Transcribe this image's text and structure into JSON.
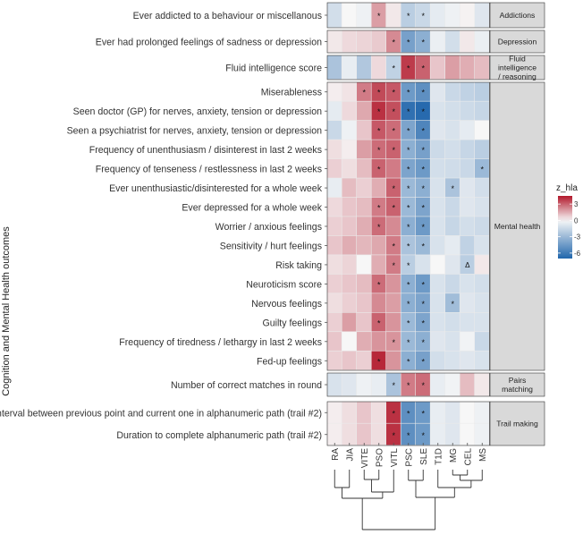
{
  "chart_data": {
    "type": "heatmap",
    "ylabel": "Cognition and Mental Health outcomes",
    "columns": [
      "RA",
      "JIA",
      "VITE",
      "PSO",
      "VITL",
      "PSC",
      "SLE",
      "T1D",
      "MG",
      "CEL",
      "MS"
    ],
    "legend": {
      "title": "z_hla",
      "ticks": [
        3,
        0,
        -3,
        -6
      ],
      "range": [
        -7,
        4.5
      ],
      "colors": {
        "negative": "#2166ac",
        "zero": "#f7f7f7",
        "positive": "#b2182b"
      }
    },
    "marker_symbols": {
      "significant": "*",
      "triangle": "Δ"
    },
    "groups": [
      {
        "name": "Addictions",
        "rows": [
          {
            "label": "Ever addicted to a behaviour or miscellanous",
            "values": [
              -1.2,
              0.0,
              -0.3,
              1.8,
              0.3,
              -2.0,
              -1.5,
              -0.6,
              -0.3,
              0.1,
              -0.8
            ],
            "marks": [
              "",
              "",
              "",
              "*",
              "",
              "*",
              "*",
              "",
              "",
              "",
              ""
            ]
          }
        ]
      },
      {
        "name": "Depression",
        "rows": [
          {
            "label": "Ever had prolonged feelings of sadness or depression",
            "values": [
              0.3,
              0.6,
              0.7,
              0.9,
              2.2,
              -4.2,
              -3.5,
              -0.4,
              -1.2,
              0.3,
              -0.4
            ],
            "marks": [
              "",
              "",
              "",
              "",
              "*",
              "*",
              "*",
              "",
              "",
              "",
              ""
            ]
          }
        ]
      },
      {
        "name": "Fluid intelligence / reasoning",
        "rows": [
          {
            "label": "Fluid intelligence score",
            "values": [
              -2.5,
              -0.5,
              -2.3,
              0.6,
              -1.8,
              3.8,
              3.0,
              1.0,
              1.8,
              1.5,
              1.2
            ],
            "marks": [
              "",
              "",
              "",
              "",
              "*",
              "*",
              "*",
              "",
              "",
              "",
              ""
            ]
          }
        ]
      },
      {
        "name": "Mental health",
        "rows": [
          {
            "label": "Miserableness",
            "values": [
              0.2,
              0.4,
              2.5,
              3.5,
              3.2,
              -4.5,
              -5.0,
              -0.8,
              -1.5,
              -1.8,
              -2.0
            ],
            "marks": [
              "",
              "",
              "*",
              "*",
              "*",
              "*",
              "*",
              "",
              "",
              "",
              ""
            ]
          },
          {
            "label": "Seen doctor (GP) for nerves, anxiety, tension or depression",
            "values": [
              -0.6,
              0.6,
              1.6,
              4.0,
              3.4,
              -6.5,
              -6.8,
              -1.0,
              -1.2,
              -1.4,
              -1.6
            ],
            "marks": [
              "",
              "",
              "",
              "*",
              "*",
              "*",
              "*",
              "",
              "",
              "",
              ""
            ]
          },
          {
            "label": "Seen a psychiatrist for nerves, anxiety, tension or depression",
            "values": [
              -1.5,
              -0.3,
              1.0,
              3.2,
              2.8,
              -4.0,
              -5.5,
              -0.8,
              -1.0,
              -0.6,
              0.0
            ],
            "marks": [
              "",
              "",
              "",
              "*",
              "*",
              "*",
              "*",
              "",
              "",
              "",
              ""
            ]
          },
          {
            "label": "Frequency of unenthusiasm / disinterest in last 2 weeks",
            "values": [
              0.5,
              0.2,
              1.8,
              2.8,
              3.0,
              -3.5,
              -4.2,
              -1.4,
              -1.2,
              -1.6,
              -2.0
            ],
            "marks": [
              "",
              "",
              "",
              "*",
              "*",
              "*",
              "*",
              "",
              "",
              "",
              ""
            ]
          },
          {
            "label": "Frequency of tenseness / restlessness in last 2 weeks",
            "values": [
              0.8,
              0.5,
              1.2,
              3.0,
              2.5,
              -4.0,
              -4.5,
              -1.2,
              -1.3,
              -1.5,
              -3.0
            ],
            "marks": [
              "",
              "",
              "",
              "*",
              "",
              "*",
              "*",
              "",
              "",
              "",
              "*"
            ]
          },
          {
            "label": "Ever unenthusiastic/disinterested for a whole week",
            "values": [
              -0.5,
              1.2,
              0.8,
              1.5,
              3.0,
              -3.0,
              -3.5,
              -1.0,
              -2.5,
              -0.8,
              -1.2
            ],
            "marks": [
              "",
              "",
              "",
              "",
              "*",
              "*",
              "*",
              "",
              "*",
              "",
              ""
            ]
          },
          {
            "label": "Ever depressed for a whole week",
            "values": [
              0.6,
              1.0,
              1.2,
              2.5,
              3.0,
              -3.0,
              -4.0,
              -1.0,
              -1.5,
              -0.8,
              -1.0
            ],
            "marks": [
              "",
              "",
              "",
              "*",
              "*",
              "*",
              "*",
              "",
              "",
              "",
              ""
            ]
          },
          {
            "label": "Worrier / anxious feelings",
            "values": [
              0.8,
              1.0,
              1.5,
              2.8,
              2.2,
              -3.5,
              -4.5,
              -1.0,
              -1.6,
              -1.2,
              -1.4
            ],
            "marks": [
              "",
              "",
              "",
              "*",
              "",
              "*",
              "*",
              "",
              "",
              "",
              ""
            ]
          },
          {
            "label": "Sensitivity / hurt feelings",
            "values": [
              1.0,
              1.5,
              1.3,
              1.6,
              2.5,
              -2.5,
              -3.0,
              -1.0,
              -0.6,
              -1.8,
              -1.0
            ],
            "marks": [
              "",
              "",
              "",
              "",
              "*",
              "*",
              "*",
              "",
              "",
              "",
              ""
            ]
          },
          {
            "label": "Risk taking",
            "values": [
              0.5,
              0.7,
              0.0,
              1.5,
              2.5,
              -2.0,
              -1.0,
              0.0,
              -0.8,
              -2.0,
              0.3
            ],
            "marks": [
              "",
              "",
              "",
              "",
              "*",
              "*",
              "",
              "",
              "",
              "Δ",
              ""
            ]
          },
          {
            "label": "Neuroticism score",
            "values": [
              0.8,
              1.0,
              1.2,
              2.8,
              2.0,
              -3.5,
              -4.5,
              -1.0,
              -1.5,
              -1.0,
              -1.2
            ],
            "marks": [
              "",
              "",
              "",
              "*",
              "",
              "*",
              "*",
              "",
              "",
              "",
              ""
            ]
          },
          {
            "label": "Nervous feelings",
            "values": [
              0.5,
              0.8,
              1.0,
              2.2,
              1.8,
              -3.5,
              -4.0,
              -1.0,
              -2.8,
              -0.8,
              -1.0
            ],
            "marks": [
              "",
              "",
              "",
              "",
              "",
              "*",
              "*",
              "",
              "*",
              "",
              ""
            ]
          },
          {
            "label": "Guilty feelings",
            "values": [
              0.8,
              1.8,
              1.0,
              3.0,
              2.0,
              -3.0,
              -4.0,
              -1.0,
              -1.2,
              -1.0,
              -1.0
            ],
            "marks": [
              "",
              "",
              "",
              "*",
              "",
              "*",
              "*",
              "",
              "",
              "",
              ""
            ]
          },
          {
            "label": "Frequency of tiredness / lethargy in last 2 weeks",
            "values": [
              1.0,
              0.0,
              1.5,
              2.0,
              2.0,
              -3.0,
              -3.5,
              -0.8,
              -1.0,
              -0.2,
              -1.5
            ],
            "marks": [
              "",
              "",
              "",
              "",
              "*",
              "*",
              "*",
              "",
              "",
              "",
              ""
            ]
          },
          {
            "label": "Fed-up feelings",
            "values": [
              0.8,
              1.0,
              0.8,
              4.2,
              2.0,
              -3.5,
              -4.2,
              -1.2,
              -1.0,
              -0.8,
              -1.0
            ],
            "marks": [
              "",
              "",
              "",
              "*",
              "",
              "*",
              "*",
              "",
              "",
              "",
              ""
            ]
          }
        ]
      },
      {
        "name": "Pairs matching",
        "rows": [
          {
            "label": "Number of correct matches in round",
            "values": [
              -1.0,
              -0.8,
              -0.3,
              -0.5,
              -2.5,
              2.5,
              2.8,
              -0.5,
              -0.2,
              1.2,
              0.3
            ],
            "marks": [
              "",
              "",
              "",
              "",
              "*",
              "*",
              "*",
              "",
              "",
              "",
              ""
            ]
          }
        ]
      },
      {
        "name": "Trail making",
        "rows": [
          {
            "label": "Interval between previous point and current one in alphanumeric path (trail #2)",
            "values": [
              0.2,
              0.5,
              1.0,
              0.5,
              4.0,
              -5.0,
              -4.5,
              -0.5,
              -0.8,
              0.0,
              -0.3
            ],
            "marks": [
              "",
              "",
              "",
              "",
              "*",
              "*",
              "*",
              "",
              "",
              "",
              ""
            ]
          },
          {
            "label": "Duration to complete alphanumeric path (trail #2)",
            "values": [
              0.2,
              0.5,
              1.0,
              0.5,
              4.0,
              -5.0,
              -4.5,
              -0.5,
              -0.8,
              0.0,
              -0.3
            ],
            "marks": [
              "",
              "",
              "",
              "",
              "*",
              "*",
              "*",
              "",
              "",
              "",
              ""
            ]
          }
        ]
      }
    ]
  }
}
